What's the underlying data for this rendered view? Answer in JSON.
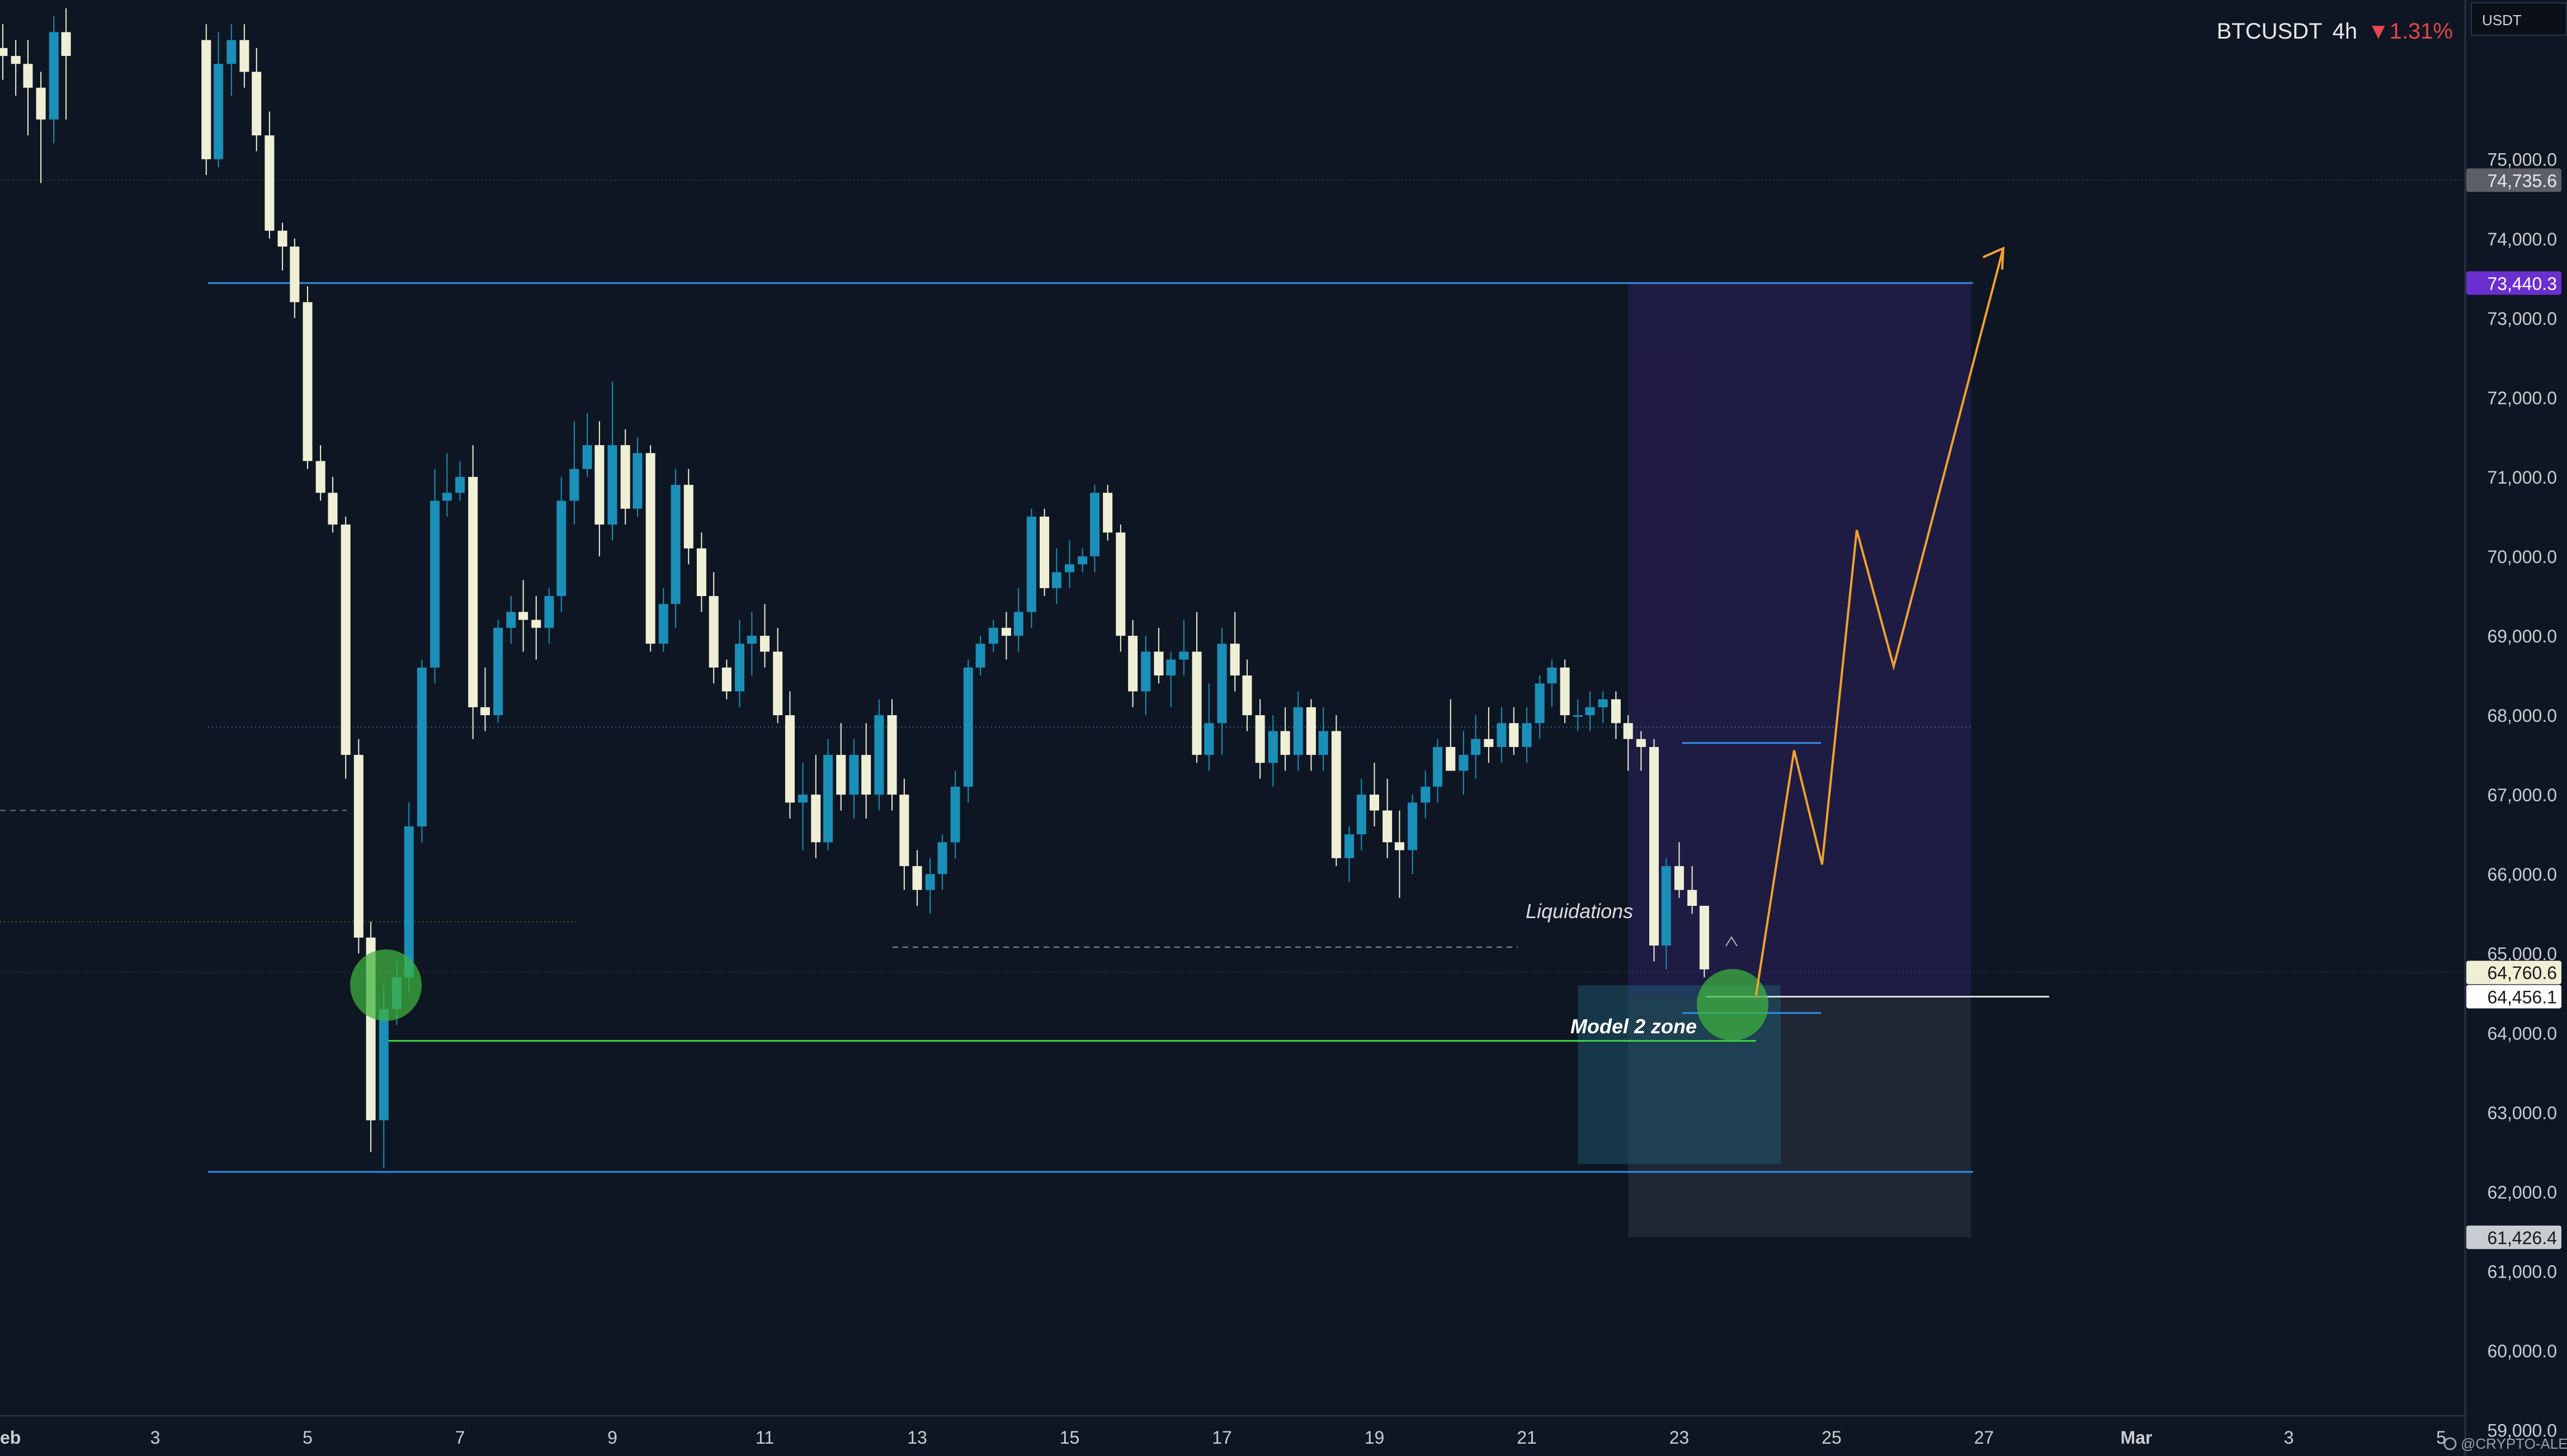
{
  "header": {
    "symbol": "BTCUSDT",
    "timeframe": "4h",
    "change": "▼1.31%"
  },
  "axis": {
    "unit": "USDT",
    "watermark": "@CRYPTO-ALERT"
  },
  "colors": {
    "background": "#0f1623",
    "candle_up": "#1a8fb8",
    "candle_down": "#efefd6",
    "level_line": "#2f8fe8",
    "green_line": "#3ed13e",
    "projection": "#f0a22e",
    "target_tag": "#6b2fd0"
  },
  "chart_data": {
    "type": "candlestick",
    "title": "BTCUSDT 4h",
    "y_range": [
      58800,
      76800
    ],
    "x_range": [
      "Feb 1",
      "Mar 5"
    ],
    "price_ticks": [
      59000,
      60000,
      61000,
      62000,
      63000,
      64000,
      65000,
      66000,
      67000,
      68000,
      69000,
      70000,
      71000,
      72000,
      73000,
      74000,
      75000
    ],
    "price_tick_labels": [
      "59,000.0",
      "60,000.0",
      "61,000.0",
      "62,000.0",
      "63,000.0",
      "64,000.0",
      "65,000.0",
      "66,000.0",
      "67,000.0",
      "68,000.0",
      "69,000.0",
      "70,000.0",
      "71,000.0",
      "72,000.0",
      "73,000.0",
      "74,000.0",
      "75,000.0"
    ],
    "date_ticks": [
      {
        "label": "eb",
        "day": 1
      },
      {
        "label": "3",
        "day": 3
      },
      {
        "label": "5",
        "day": 5
      },
      {
        "label": "7",
        "day": 7
      },
      {
        "label": "9",
        "day": 9
      },
      {
        "label": "11",
        "day": 11
      },
      {
        "label": "13",
        "day": 13
      },
      {
        "label": "15",
        "day": 15
      },
      {
        "label": "17",
        "day": 17
      },
      {
        "label": "19",
        "day": 19
      },
      {
        "label": "21",
        "day": 21
      },
      {
        "label": "23",
        "day": 23
      },
      {
        "label": "25",
        "day": 25
      },
      {
        "label": "27",
        "day": 27
      },
      {
        "label": "Mar",
        "day": 29
      },
      {
        "label": "3",
        "day": 31
      },
      {
        "label": "5",
        "day": 33
      }
    ],
    "candles": [
      [
        1.0,
        76400,
        76700,
        76000,
        76300
      ],
      [
        1.17,
        76300,
        76500,
        75800,
        76200
      ],
      [
        1.33,
        76200,
        76500,
        75300,
        75900
      ],
      [
        1.5,
        75900,
        76100,
        74700,
        75500
      ],
      [
        1.67,
        75500,
        76800,
        75200,
        76600
      ],
      [
        1.83,
        76600,
        76900,
        75500,
        76300
      ],
      [
        3.67,
        76500,
        76700,
        74800,
        75000
      ],
      [
        3.83,
        75000,
        76600,
        74900,
        76200
      ],
      [
        4.0,
        76200,
        76700,
        75800,
        76500
      ],
      [
        4.17,
        76500,
        76700,
        75900,
        76100
      ],
      [
        4.33,
        76100,
        76400,
        75100,
        75300
      ],
      [
        4.5,
        75300,
        75600,
        74000,
        74100
      ],
      [
        4.67,
        74100,
        74200,
        73600,
        73900
      ],
      [
        4.83,
        73900,
        74000,
        73000,
        73200
      ],
      [
        5.0,
        73200,
        73400,
        71100,
        71200
      ],
      [
        5.17,
        71200,
        71400,
        70700,
        70800
      ],
      [
        5.33,
        70800,
        71000,
        70300,
        70400
      ],
      [
        5.5,
        70400,
        70500,
        67200,
        67500
      ],
      [
        5.67,
        67500,
        67700,
        65000,
        65200
      ],
      [
        5.83,
        65200,
        65400,
        62500,
        62900
      ],
      [
        6.0,
        62900,
        64600,
        62300,
        64300
      ],
      [
        6.17,
        64300,
        64900,
        64100,
        64700
      ],
      [
        6.33,
        64700,
        66900,
        64500,
        66600
      ],
      [
        6.5,
        66600,
        68700,
        66400,
        68600
      ],
      [
        6.67,
        68600,
        71100,
        68400,
        70700
      ],
      [
        6.83,
        70700,
        71300,
        70500,
        70800
      ],
      [
        7.0,
        70800,
        71200,
        70700,
        71000
      ],
      [
        7.17,
        71000,
        71400,
        67700,
        68100
      ],
      [
        7.33,
        68100,
        68600,
        67800,
        68000
      ],
      [
        7.5,
        68000,
        69200,
        67900,
        69100
      ],
      [
        7.67,
        69100,
        69500,
        68900,
        69300
      ],
      [
        7.83,
        69300,
        69700,
        68800,
        69200
      ],
      [
        8.0,
        69200,
        69500,
        68700,
        69100
      ],
      [
        8.17,
        69100,
        69600,
        68900,
        69500
      ],
      [
        8.33,
        69500,
        71000,
        69300,
        70700
      ],
      [
        8.5,
        70700,
        71700,
        70400,
        71100
      ],
      [
        8.67,
        71100,
        71800,
        71000,
        71400
      ],
      [
        8.83,
        71400,
        71700,
        70000,
        70400
      ],
      [
        9.0,
        70400,
        72200,
        70200,
        71400
      ],
      [
        9.17,
        71400,
        71600,
        70400,
        70600
      ],
      [
        9.33,
        70600,
        71500,
        70500,
        71300
      ],
      [
        9.5,
        71300,
        71400,
        68800,
        68900
      ],
      [
        9.67,
        68900,
        69600,
        68800,
        69400
      ],
      [
        9.83,
        69400,
        71100,
        69100,
        70900
      ],
      [
        10.0,
        70900,
        71100,
        69900,
        70100
      ],
      [
        10.17,
        70100,
        70300,
        69300,
        69500
      ],
      [
        10.33,
        69500,
        69800,
        68400,
        68600
      ],
      [
        10.5,
        68600,
        68700,
        68200,
        68300
      ],
      [
        10.67,
        68300,
        69200,
        68100,
        68900
      ],
      [
        10.83,
        68900,
        69300,
        68500,
        69000
      ],
      [
        11.0,
        69000,
        69400,
        68600,
        68800
      ],
      [
        11.17,
        68800,
        69100,
        67900,
        68000
      ],
      [
        11.33,
        68000,
        68300,
        66700,
        66900
      ],
      [
        11.5,
        66900,
        67400,
        66300,
        67000
      ],
      [
        11.67,
        67000,
        67500,
        66200,
        66400
      ],
      [
        11.83,
        66400,
        67700,
        66300,
        67500
      ],
      [
        12.0,
        67500,
        67900,
        66800,
        67000
      ],
      [
        12.17,
        67000,
        67700,
        66700,
        67500
      ],
      [
        12.33,
        67500,
        67900,
        66700,
        67000
      ],
      [
        12.5,
        67000,
        68200,
        66800,
        68000
      ],
      [
        12.67,
        68000,
        68200,
        66800,
        67000
      ],
      [
        12.83,
        67000,
        67200,
        65800,
        66100
      ],
      [
        13.0,
        66100,
        66300,
        65600,
        65800
      ],
      [
        13.17,
        65800,
        66200,
        65500,
        66000
      ],
      [
        13.33,
        66000,
        66500,
        65800,
        66400
      ],
      [
        13.5,
        66400,
        67300,
        66200,
        67100
      ],
      [
        13.67,
        67100,
        68700,
        66900,
        68600
      ],
      [
        13.83,
        68600,
        69000,
        68500,
        68900
      ],
      [
        14.0,
        68900,
        69200,
        68800,
        69100
      ],
      [
        14.17,
        69100,
        69300,
        68700,
        69000
      ],
      [
        14.33,
        69000,
        69600,
        68800,
        69300
      ],
      [
        14.5,
        69300,
        70600,
        69100,
        70500
      ],
      [
        14.67,
        70500,
        70600,
        69500,
        69600
      ],
      [
        14.83,
        69600,
        70100,
        69400,
        69800
      ],
      [
        15.0,
        69800,
        70200,
        69600,
        69900
      ],
      [
        15.17,
        69900,
        70100,
        69800,
        70000
      ],
      [
        15.33,
        70000,
        70900,
        69800,
        70800
      ],
      [
        15.5,
        70800,
        70900,
        70200,
        70300
      ],
      [
        15.67,
        70300,
        70400,
        68800,
        69000
      ],
      [
        15.83,
        69000,
        69200,
        68100,
        68300
      ],
      [
        16.0,
        68300,
        69000,
        68000,
        68800
      ],
      [
        16.17,
        68800,
        69100,
        68400,
        68500
      ],
      [
        16.33,
        68500,
        68800,
        68100,
        68700
      ],
      [
        16.5,
        68700,
        69200,
        68500,
        68800
      ],
      [
        16.67,
        68800,
        69300,
        67400,
        67500
      ],
      [
        16.83,
        67500,
        68400,
        67300,
        67900
      ],
      [
        17.0,
        67900,
        69100,
        67500,
        68900
      ],
      [
        17.17,
        68900,
        69300,
        68300,
        68500
      ],
      [
        17.33,
        68500,
        68700,
        67800,
        68000
      ],
      [
        17.5,
        68000,
        68200,
        67200,
        67400
      ],
      [
        17.67,
        67400,
        68000,
        67100,
        67800
      ],
      [
        17.83,
        67800,
        68100,
        67300,
        67500
      ],
      [
        18.0,
        67500,
        68300,
        67300,
        68100
      ],
      [
        18.17,
        68100,
        68200,
        67300,
        67500
      ],
      [
        18.33,
        67500,
        68100,
        67300,
        67800
      ],
      [
        18.5,
        67800,
        68000,
        66100,
        66200
      ],
      [
        18.67,
        66200,
        66600,
        65900,
        66500
      ],
      [
        18.83,
        66500,
        67200,
        66300,
        67000
      ],
      [
        19.0,
        67000,
        67400,
        66600,
        66800
      ],
      [
        19.17,
        66800,
        67200,
        66200,
        66400
      ],
      [
        19.33,
        66400,
        66800,
        65700,
        66300
      ],
      [
        19.5,
        66300,
        67000,
        66000,
        66900
      ],
      [
        19.67,
        66900,
        67300,
        66700,
        67100
      ],
      [
        19.83,
        67100,
        67700,
        66900,
        67600
      ],
      [
        20.0,
        67600,
        68200,
        67300,
        67300
      ],
      [
        20.17,
        67300,
        67800,
        67000,
        67500
      ],
      [
        20.33,
        67500,
        68000,
        67200,
        67700
      ],
      [
        20.5,
        67700,
        68100,
        67400,
        67600
      ],
      [
        20.67,
        67600,
        68100,
        67400,
        67900
      ],
      [
        20.83,
        67900,
        68100,
        67500,
        67600
      ],
      [
        21.0,
        67600,
        68100,
        67400,
        67900
      ],
      [
        21.17,
        67900,
        68500,
        67700,
        68400
      ],
      [
        21.33,
        68400,
        68700,
        68100,
        68600
      ],
      [
        21.5,
        68600,
        68700,
        67900,
        68000
      ],
      [
        21.67,
        68000,
        68200,
        67800,
        68000
      ],
      [
        21.83,
        68000,
        68300,
        67800,
        68100
      ],
      [
        22.0,
        68100,
        68300,
        67900,
        68200
      ],
      [
        22.17,
        68200,
        68300,
        67700,
        67900
      ],
      [
        22.33,
        67900,
        68000,
        67300,
        67700
      ],
      [
        22.5,
        67700,
        67800,
        67300,
        67600
      ],
      [
        22.67,
        67600,
        67700,
        64900,
        65100
      ],
      [
        22.83,
        65100,
        66200,
        64800,
        66100
      ],
      [
        23.0,
        66100,
        66400,
        65700,
        65800
      ],
      [
        23.17,
        65800,
        66100,
        65500,
        65600
      ],
      [
        23.33,
        65600,
        65600,
        64700,
        64800
      ]
    ],
    "horizontal_levels": [
      {
        "price": 73440.3,
        "color": "#2f8fe8"
      },
      {
        "price": 62250,
        "color": "#2f8fe8"
      },
      {
        "price": 63900,
        "color": "#3ed13e"
      },
      {
        "price": 67850,
        "color": "#1f6e86",
        "style": "dotted"
      },
      {
        "price": 64760.6,
        "color": "#2a3e4e",
        "style": "dotted"
      },
      {
        "price": 74735.6,
        "color": "#2a3e4e",
        "style": "dotted"
      },
      {
        "price": 66800,
        "color": "#6e7580",
        "style": "dashed"
      },
      {
        "price": 65400,
        "color": "#23711f",
        "style": "dotted"
      },
      {
        "price": 65080,
        "color": "#888f99",
        "style": "dashed"
      },
      {
        "price": 67650,
        "color": "#2f8fe8"
      },
      {
        "price": 64250,
        "color": "#2f8fe8"
      },
      {
        "price": 64456.1,
        "color": "#dcdce0"
      }
    ],
    "annotations": [
      {
        "text": "Liquidations",
        "price": 65080
      },
      {
        "text": "Model 2 zone",
        "price": 63600
      }
    ],
    "zones": [
      {
        "name": "target-zone",
        "price_top": 73440.3,
        "price_bottom": 64456.1,
        "day_start": 22.33,
        "day_end": 26.83
      },
      {
        "name": "stop-zone",
        "price_top": 64456.1,
        "price_bottom": 61426.4,
        "day_start": 22.33,
        "day_end": 26.83
      },
      {
        "name": "model-2-zone",
        "price_top": 64600,
        "price_bottom": 62350,
        "day_start": 21.67,
        "day_end": 24.33
      }
    ],
    "projection_path": [
      [
        23.33,
        64050
      ],
      [
        23.83,
        66150
      ],
      [
        24.17,
        65700
      ],
      [
        24.67,
        69800
      ],
      [
        25.17,
        68100
      ],
      [
        25.67,
        73400
      ]
    ],
    "price_tags": [
      {
        "label": "74,735.6",
        "price": 74735.6,
        "bg": "#5c5f66",
        "fg": "#e8e8ec"
      },
      {
        "label": "73,440.3",
        "price": 73440.3,
        "bg": "#6b2fd0",
        "fg": "#ffffff"
      },
      {
        "label": "64,760.6",
        "price": 64760.6,
        "bg": "#efefd6",
        "fg": "#1a1a1a"
      },
      {
        "label": "64,456.1",
        "price": 64456.1,
        "bg": "#ffffff",
        "fg": "#1a1a1a"
      },
      {
        "label": "61,426.4",
        "price": 61426.4,
        "bg": "#c8cbd0",
        "fg": "#1a1a1a"
      }
    ],
    "markers": [
      {
        "name": "low-circle-left",
        "day": 6.0,
        "price": 64100
      },
      {
        "name": "low-circle-right",
        "day": 23.67,
        "price": 63850
      }
    ]
  }
}
